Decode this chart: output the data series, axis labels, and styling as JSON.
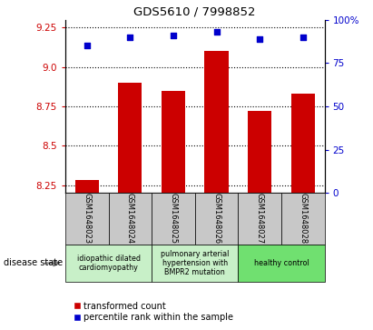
{
  "title": "GDS5610 / 7998852",
  "samples": [
    "GSM1648023",
    "GSM1648024",
    "GSM1648025",
    "GSM1648026",
    "GSM1648027",
    "GSM1648028"
  ],
  "bar_values": [
    8.28,
    8.9,
    8.85,
    9.1,
    8.72,
    8.83
  ],
  "dot_values": [
    85,
    90,
    91,
    93,
    89,
    90
  ],
  "ylim_left": [
    8.2,
    9.3
  ],
  "ylim_right": [
    0,
    100
  ],
  "yticks_left": [
    8.25,
    8.5,
    8.75,
    9.0,
    9.25
  ],
  "yticks_right": [
    0,
    25,
    50,
    75,
    100
  ],
  "bar_color": "#cc0000",
  "dot_color": "#0000cc",
  "group_boundaries": [
    [
      0,
      1,
      "idiopathic dilated\ncardiomyopathy",
      "#c8f0c8"
    ],
    [
      2,
      3,
      "pulmonary arterial\nhypertension with\nBMPR2 mutation",
      "#c8f0c8"
    ],
    [
      4,
      5,
      "healthy control",
      "#70e070"
    ]
  ],
  "legend_red": "transformed count",
  "legend_blue": "percentile rank within the sample",
  "disease_state_label": "disease state",
  "left_tick_color": "#cc0000",
  "right_tick_color": "#0000cc",
  "sample_box_color": "#c8c8c8"
}
